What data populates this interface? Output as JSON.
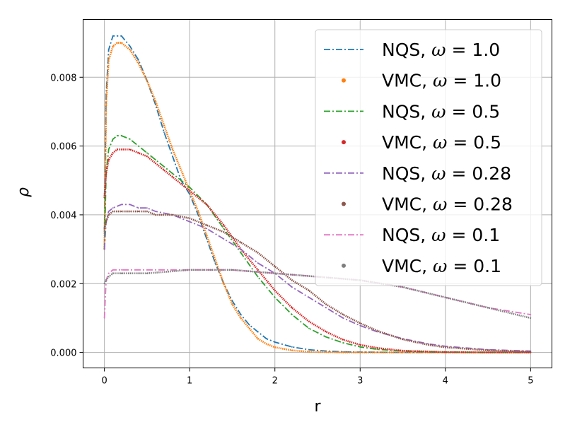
{
  "chart_data": {
    "type": "line",
    "xlabel": "r",
    "ylabel": "ρ",
    "xlim": [
      -0.25,
      5.25
    ],
    "ylim": [
      -0.00045,
      0.00968
    ],
    "x_ticks": [
      0,
      1,
      2,
      3,
      4,
      5
    ],
    "x_tick_labels": [
      "0",
      "1",
      "2",
      "3",
      "4",
      "5"
    ],
    "y_ticks": [
      0.0,
      0.002,
      0.004,
      0.006,
      0.008
    ],
    "y_tick_labels": [
      "0.000",
      "0.002",
      "0.004",
      "0.006",
      "0.008"
    ],
    "grid": true,
    "legend_position": "upper right",
    "series": [
      {
        "name": "NQS, ω = 1.0",
        "legend": {
          "prefix": "NQS, ",
          "symbol": "ω",
          "suffix": " = 1.0"
        },
        "style": "dashdot",
        "color": "#1f77b4",
        "x": [
          0.0,
          0.02,
          0.05,
          0.1,
          0.15,
          0.2,
          0.3,
          0.4,
          0.5,
          0.6,
          0.7,
          0.8,
          0.9,
          1.0,
          1.1,
          1.2,
          1.3,
          1.4,
          1.5,
          1.6,
          1.7,
          1.8,
          1.9,
          2.0,
          2.2,
          2.4,
          2.6,
          2.8,
          3.0,
          3.5,
          4.0,
          5.0
        ],
        "y": [
          0.0035,
          0.0075,
          0.0088,
          0.0092,
          0.0092,
          0.0092,
          0.0089,
          0.0085,
          0.0079,
          0.0072,
          0.0064,
          0.0057,
          0.005,
          0.0046,
          0.004,
          0.0033,
          0.0026,
          0.002,
          0.0015,
          0.0011,
          0.0008,
          0.0006,
          0.0004,
          0.0003,
          0.00016,
          8e-05,
          4e-05,
          2e-05,
          1e-05,
          0.0,
          0.0,
          0.0
        ]
      },
      {
        "name": "VMC, ω = 1.0",
        "legend": {
          "prefix": "VMC, ",
          "symbol": "ω",
          "suffix": " = 1.0"
        },
        "style": "dots",
        "color": "#ff7f0e",
        "x": [
          0.0,
          0.02,
          0.05,
          0.1,
          0.15,
          0.2,
          0.3,
          0.4,
          0.5,
          0.6,
          0.7,
          0.8,
          0.9,
          1.0,
          1.1,
          1.2,
          1.3,
          1.4,
          1.5,
          1.6,
          1.7,
          1.8,
          1.9,
          2.0,
          2.2,
          2.4,
          2.6,
          2.8,
          3.0,
          3.5,
          4.0,
          5.0
        ],
        "y": [
          0.003,
          0.0072,
          0.0085,
          0.0089,
          0.009,
          0.009,
          0.0088,
          0.0084,
          0.0079,
          0.0073,
          0.0066,
          0.0059,
          0.0053,
          0.0047,
          0.0041,
          0.0034,
          0.0027,
          0.002,
          0.0014,
          0.001,
          0.0007,
          0.0004,
          0.00025,
          0.00015,
          6e-05,
          2e-05,
          1e-05,
          0.0,
          0.0,
          0.0,
          0.0,
          0.0
        ]
      },
      {
        "name": "NQS, ω = 0.5",
        "legend": {
          "prefix": "NQS, ",
          "symbol": "ω",
          "suffix": " = 0.5"
        },
        "style": "dashdot",
        "color": "#2ca02c",
        "x": [
          0.0,
          0.02,
          0.05,
          0.1,
          0.15,
          0.2,
          0.3,
          0.4,
          0.5,
          0.6,
          0.7,
          0.8,
          0.9,
          1.0,
          1.2,
          1.4,
          1.6,
          1.8,
          2.0,
          2.2,
          2.4,
          2.6,
          2.8,
          3.0,
          3.2,
          3.5,
          4.0,
          4.5,
          5.0
        ],
        "y": [
          0.003,
          0.0052,
          0.0059,
          0.0062,
          0.0063,
          0.0063,
          0.0062,
          0.006,
          0.0058,
          0.0056,
          0.0054,
          0.0052,
          0.005,
          0.0048,
          0.0043,
          0.0036,
          0.0029,
          0.0022,
          0.0016,
          0.0011,
          0.0007,
          0.00045,
          0.00028,
          0.00016,
          9e-05,
          4e-05,
          1e-05,
          0.0,
          0.0
        ]
      },
      {
        "name": "VMC, ω = 0.5",
        "legend": {
          "prefix": "VMC, ",
          "symbol": "ω",
          "suffix": " = 0.5"
        },
        "style": "dots",
        "color": "#d62728",
        "x": [
          0.0,
          0.02,
          0.05,
          0.1,
          0.15,
          0.2,
          0.3,
          0.4,
          0.5,
          0.6,
          0.7,
          0.8,
          0.9,
          1.0,
          1.2,
          1.4,
          1.6,
          1.8,
          2.0,
          2.2,
          2.4,
          2.6,
          2.8,
          3.0,
          3.2,
          3.5,
          4.0,
          4.5,
          5.0
        ],
        "y": [
          0.0045,
          0.0052,
          0.0056,
          0.0058,
          0.0059,
          0.0059,
          0.0059,
          0.0058,
          0.0057,
          0.0055,
          0.0053,
          0.0051,
          0.0049,
          0.0047,
          0.0043,
          0.0037,
          0.003,
          0.0024,
          0.0018,
          0.0013,
          0.0009,
          0.0006,
          0.00037,
          0.00022,
          0.00013,
          5e-05,
          1e-05,
          0.0,
          0.0
        ]
      },
      {
        "name": "NQS, ω = 0.28",
        "legend": {
          "prefix": "NQS, ",
          "symbol": "ω",
          "suffix": " = 0.28"
        },
        "style": "dashdot",
        "color": "#9467bd",
        "x": [
          0.0,
          0.02,
          0.05,
          0.1,
          0.2,
          0.3,
          0.4,
          0.5,
          0.6,
          0.8,
          1.0,
          1.2,
          1.4,
          1.6,
          1.8,
          2.0,
          2.2,
          2.4,
          2.6,
          2.8,
          3.0,
          3.2,
          3.5,
          3.8,
          4.0,
          4.5,
          5.0
        ],
        "y": [
          0.003,
          0.0038,
          0.0041,
          0.0042,
          0.0043,
          0.0043,
          0.0042,
          0.0042,
          0.0041,
          0.004,
          0.0038,
          0.0036,
          0.0033,
          0.003,
          0.0026,
          0.0023,
          0.0019,
          0.0016,
          0.0013,
          0.001,
          0.00078,
          0.0006,
          0.0004,
          0.00025,
          0.00018,
          8e-05,
          4e-05
        ]
      },
      {
        "name": "VMC, ω = 0.28",
        "legend": {
          "prefix": "VMC, ",
          "symbol": "ω",
          "suffix": " = 0.28"
        },
        "style": "dots",
        "color": "#8c564b",
        "x": [
          0.0,
          0.02,
          0.05,
          0.1,
          0.2,
          0.3,
          0.4,
          0.5,
          0.6,
          0.8,
          1.0,
          1.2,
          1.4,
          1.6,
          1.8,
          2.0,
          2.2,
          2.4,
          2.6,
          2.8,
          3.0,
          3.2,
          3.5,
          3.8,
          4.0,
          4.5,
          5.0
        ],
        "y": [
          0.0036,
          0.0038,
          0.004,
          0.0041,
          0.0041,
          0.0041,
          0.0041,
          0.0041,
          0.004,
          0.004,
          0.0039,
          0.0037,
          0.0035,
          0.0032,
          0.0029,
          0.0025,
          0.0021,
          0.0018,
          0.0014,
          0.0011,
          0.00085,
          0.00063,
          0.00038,
          0.00022,
          0.00015,
          6e-05,
          2e-05
        ]
      },
      {
        "name": "NQS, ω = 0.1",
        "legend": {
          "prefix": "NQS, ",
          "symbol": "ω",
          "suffix": " = 0.1"
        },
        "style": "dashdot",
        "color": "#e377c2",
        "x": [
          0.0,
          0.02,
          0.05,
          0.1,
          0.2,
          0.5,
          1.0,
          1.5,
          2.0,
          2.5,
          3.0,
          3.5,
          4.0,
          4.5,
          5.0
        ],
        "y": [
          0.001,
          0.0021,
          0.0023,
          0.0024,
          0.0024,
          0.0024,
          0.0024,
          0.0024,
          0.0023,
          0.0022,
          0.0021,
          0.0019,
          0.0016,
          0.0013,
          0.0011
        ]
      },
      {
        "name": "VMC, ω = 0.1",
        "legend": {
          "prefix": "VMC, ",
          "symbol": "ω",
          "suffix": " = 0.1"
        },
        "style": "dots",
        "color": "#7f7f7f",
        "x": [
          0.0,
          0.02,
          0.05,
          0.1,
          0.2,
          0.5,
          1.0,
          1.5,
          2.0,
          2.5,
          3.0,
          3.5,
          4.0,
          4.5,
          5.0
        ],
        "y": [
          0.002,
          0.0021,
          0.0022,
          0.0023,
          0.0023,
          0.0023,
          0.0024,
          0.0024,
          0.0023,
          0.0022,
          0.0021,
          0.0019,
          0.0016,
          0.0013,
          0.001
        ]
      }
    ]
  }
}
